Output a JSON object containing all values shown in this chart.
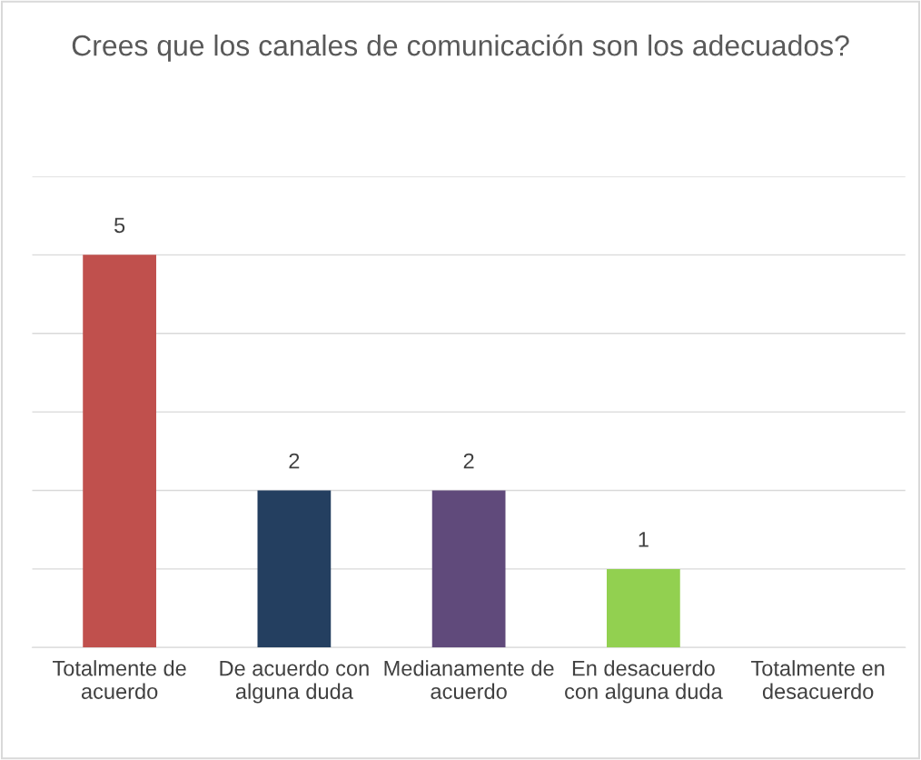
{
  "chart_data": {
    "type": "bar",
    "title": "Crees que los canales de comunicación son los adecuados?",
    "categories": [
      "Totalmente de\nacuerdo",
      "De acuerdo con\nalguna duda",
      "Medianamente de\nacuerdo",
      "En desacuerdo\ncon alguna duda",
      "Totalmente en\ndesacuerdo"
    ],
    "values": [
      5,
      2,
      2,
      1,
      0
    ],
    "colors": [
      "#c0504d",
      "#243f60",
      "#604a7b",
      "#92d050",
      "#4bacc6"
    ],
    "value_labels": [
      "5",
      "2",
      "2",
      "1",
      null
    ],
    "ylim": [
      0,
      6
    ],
    "yticks": [
      {
        "value": 0,
        "label": null
      },
      {
        "value": 1,
        "label": null
      },
      {
        "value": 2,
        "label": null
      },
      {
        "value": 3,
        "label": null
      },
      {
        "value": 4,
        "label": null
      },
      {
        "value": 5,
        "label": null
      },
      {
        "value": 6,
        "label": null
      }
    ],
    "grid": "y",
    "tick_labels": "x"
  }
}
